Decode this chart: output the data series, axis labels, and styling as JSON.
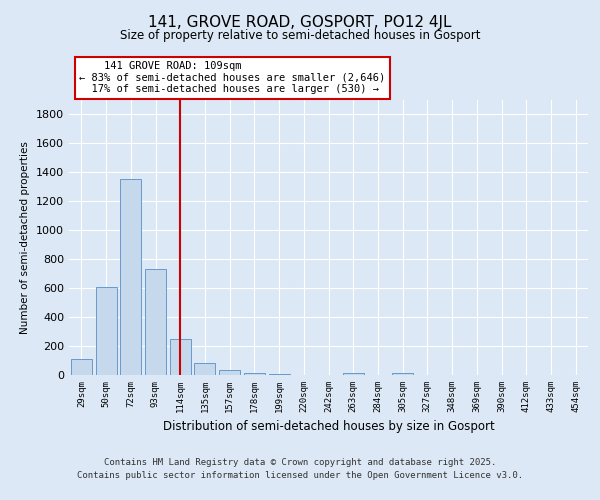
{
  "title": "141, GROVE ROAD, GOSPORT, PO12 4JL",
  "subtitle": "Size of property relative to semi-detached houses in Gosport",
  "xlabel": "Distribution of semi-detached houses by size in Gosport",
  "ylabel": "Number of semi-detached properties",
  "categories": [
    "29sqm",
    "50sqm",
    "72sqm",
    "93sqm",
    "114sqm",
    "135sqm",
    "157sqm",
    "178sqm",
    "199sqm",
    "220sqm",
    "242sqm",
    "263sqm",
    "284sqm",
    "305sqm",
    "327sqm",
    "348sqm",
    "369sqm",
    "390sqm",
    "412sqm",
    "433sqm",
    "454sqm"
  ],
  "values": [
    113,
    609,
    1352,
    732,
    252,
    80,
    35,
    14,
    10,
    0,
    0,
    15,
    0,
    12,
    0,
    0,
    0,
    0,
    0,
    0,
    0
  ],
  "bar_color": "#c5d8ec",
  "bar_edge_color": "#6699cc",
  "property_label": "141 GROVE ROAD: 109sqm",
  "pct_smaller": 83,
  "pct_smaller_count": 2646,
  "pct_larger": 17,
  "pct_larger_count": 530,
  "vline_x_index": 4,
  "vline_color": "#cc0000",
  "ylim": [
    0,
    1900
  ],
  "yticks": [
    0,
    200,
    400,
    600,
    800,
    1000,
    1200,
    1400,
    1600,
    1800
  ],
  "background_color": "#dce8f5",
  "plot_bg_color": "#dce8f5",
  "grid_color": "#ffffff",
  "footer_line1": "Contains HM Land Registry data © Crown copyright and database right 2025.",
  "footer_line2": "Contains public sector information licensed under the Open Government Licence v3.0."
}
